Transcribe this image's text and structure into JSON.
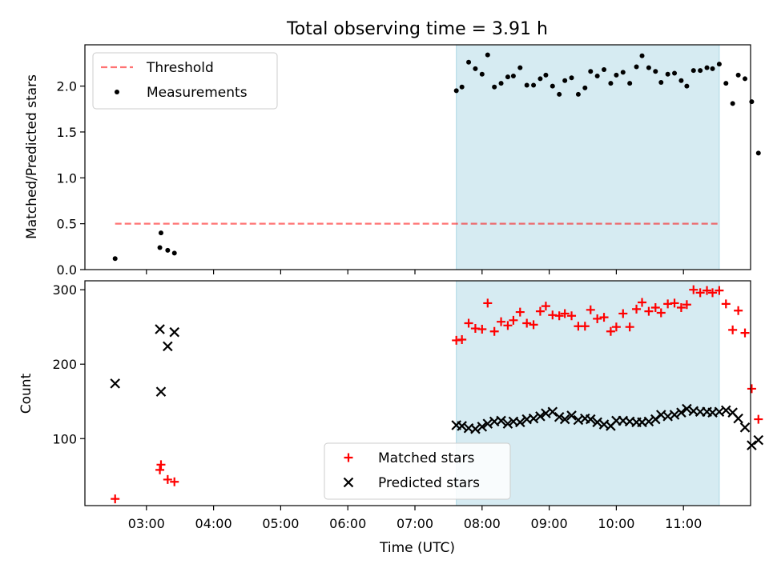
{
  "title": "Total observing time = 3.91 h",
  "colors": {
    "shade": "#add8e6",
    "threshold": "#ff0000",
    "matched": "#ff0000",
    "predicted": "#000000",
    "measurement": "#000000"
  },
  "chart_data": [
    {
      "type": "scatter",
      "ylabel": "Matched/Predicted stars",
      "ylim": [
        0,
        2.45
      ],
      "yticks": [
        "0.0",
        "0.5",
        "1.0",
        "1.5",
        "2.0"
      ],
      "xlim": [
        "02:05",
        "12:00"
      ],
      "shaded_span": [
        "07:37",
        "11:32"
      ],
      "threshold": {
        "name": "Threshold",
        "y": 0.5,
        "x_range": [
          "02:32",
          "11:32"
        ],
        "style": "dashed"
      },
      "legend": {
        "position": "top-left",
        "entries": [
          "Threshold",
          "Measurements"
        ]
      },
      "series": [
        {
          "name": "Measurements",
          "marker": "dot",
          "points": [
            [
              "02:32",
              0.12
            ],
            [
              "03:12",
              0.24
            ],
            [
              "03:13",
              0.4
            ],
            [
              "03:19",
              0.21
            ],
            [
              "03:25",
              0.18
            ],
            [
              "07:37",
              1.95
            ],
            [
              "07:42",
              1.99
            ],
            [
              "07:48",
              2.26
            ],
            [
              "07:54",
              2.19
            ],
            [
              "08:00",
              2.13
            ],
            [
              "08:05",
              2.34
            ],
            [
              "08:11",
              1.99
            ],
            [
              "08:17",
              2.03
            ],
            [
              "08:23",
              2.1
            ],
            [
              "08:28",
              2.11
            ],
            [
              "08:34",
              2.2
            ],
            [
              "08:40",
              2.01
            ],
            [
              "08:46",
              2.01
            ],
            [
              "08:52",
              2.08
            ],
            [
              "08:57",
              2.12
            ],
            [
              "09:03",
              2.0
            ],
            [
              "09:09",
              1.91
            ],
            [
              "09:14",
              2.06
            ],
            [
              "09:20",
              2.09
            ],
            [
              "09:26",
              1.91
            ],
            [
              "09:32",
              1.98
            ],
            [
              "09:37",
              2.16
            ],
            [
              "09:43",
              2.11
            ],
            [
              "09:49",
              2.18
            ],
            [
              "09:55",
              2.03
            ],
            [
              "10:00",
              2.12
            ],
            [
              "10:06",
              2.15
            ],
            [
              "10:12",
              2.03
            ],
            [
              "10:18",
              2.21
            ],
            [
              "10:23",
              2.33
            ],
            [
              "10:29",
              2.2
            ],
            [
              "10:35",
              2.16
            ],
            [
              "10:40",
              2.04
            ],
            [
              "10:46",
              2.13
            ],
            [
              "10:52",
              2.14
            ],
            [
              "10:58",
              2.06
            ],
            [
              "11:03",
              2.0
            ],
            [
              "11:09",
              2.17
            ],
            [
              "11:15",
              2.17
            ],
            [
              "11:21",
              2.2
            ],
            [
              "11:26",
              2.19
            ],
            [
              "11:32",
              2.24
            ],
            [
              "11:38",
              2.03
            ],
            [
              "11:44",
              1.81
            ],
            [
              "11:49",
              2.12
            ],
            [
              "11:55",
              2.08
            ],
            [
              "12:01",
              1.83
            ],
            [
              "12:07",
              1.27
            ]
          ]
        }
      ]
    },
    {
      "type": "scatter",
      "xlabel": "Time (UTC)",
      "ylabel": "Count",
      "ylim": [
        10,
        312
      ],
      "yticks": [
        "100",
        "200",
        "300"
      ],
      "xticks": [
        "03:00",
        "04:00",
        "05:00",
        "06:00",
        "07:00",
        "08:00",
        "09:00",
        "10:00",
        "11:00"
      ],
      "xlim": [
        "02:05",
        "12:00"
      ],
      "shaded_span": [
        "07:37",
        "11:32"
      ],
      "legend": {
        "position": "bottom-center",
        "entries": [
          "Matched stars",
          "Predicted stars"
        ]
      },
      "series": [
        {
          "name": "Matched stars",
          "marker": "plus",
          "points": [
            [
              "02:32",
              19
            ],
            [
              "03:12",
              58
            ],
            [
              "03:13",
              65
            ],
            [
              "03:19",
              45
            ],
            [
              "03:25",
              42
            ],
            [
              "07:37",
              232
            ],
            [
              "07:42",
              233
            ],
            [
              "07:48",
              255
            ],
            [
              "07:54",
              248
            ],
            [
              "08:00",
              247
            ],
            [
              "08:05",
              282
            ],
            [
              "08:11",
              244
            ],
            [
              "08:17",
              257
            ],
            [
              "08:23",
              252
            ],
            [
              "08:28",
              259
            ],
            [
              "08:34",
              270
            ],
            [
              "08:40",
              255
            ],
            [
              "08:46",
              253
            ],
            [
              "08:52",
              271
            ],
            [
              "08:57",
              278
            ],
            [
              "09:03",
              266
            ],
            [
              "09:09",
              265
            ],
            [
              "09:14",
              268
            ],
            [
              "09:20",
              265
            ],
            [
              "09:26",
              251
            ],
            [
              "09:32",
              251
            ],
            [
              "09:37",
              273
            ],
            [
              "09:43",
              261
            ],
            [
              "09:49",
              263
            ],
            [
              "09:55",
              244
            ],
            [
              "10:00",
              250
            ],
            [
              "10:06",
              268
            ],
            [
              "10:12",
              250
            ],
            [
              "10:18",
              274
            ],
            [
              "10:23",
              283
            ],
            [
              "10:29",
              271
            ],
            [
              "10:35",
              276
            ],
            [
              "10:40",
              269
            ],
            [
              "10:46",
              281
            ],
            [
              "10:52",
              282
            ],
            [
              "10:58",
              276
            ],
            [
              "11:03",
              280
            ],
            [
              "11:09",
              300
            ],
            [
              "11:15",
              296
            ],
            [
              "11:21",
              299
            ],
            [
              "11:26",
              296
            ],
            [
              "11:32",
              299
            ],
            [
              "11:38",
              281
            ],
            [
              "11:44",
              246
            ],
            [
              "11:49",
              272
            ],
            [
              "11:55",
              242
            ],
            [
              "12:01",
              167
            ],
            [
              "12:07",
              126
            ]
          ]
        },
        {
          "name": "Predicted stars",
          "marker": "x",
          "points": [
            [
              "02:32",
              174
            ],
            [
              "03:12",
              247
            ],
            [
              "03:13",
              163
            ],
            [
              "03:19",
              224
            ],
            [
              "03:25",
              243
            ],
            [
              "07:37",
              118
            ],
            [
              "07:42",
              117
            ],
            [
              "07:48",
              114
            ],
            [
              "07:54",
              113
            ],
            [
              "08:00",
              116
            ],
            [
              "08:05",
              120
            ],
            [
              "08:11",
              123
            ],
            [
              "08:17",
              124
            ],
            [
              "08:23",
              120
            ],
            [
              "08:28",
              123
            ],
            [
              "08:34",
              122
            ],
            [
              "08:40",
              126
            ],
            [
              "08:46",
              127
            ],
            [
              "08:52",
              130
            ],
            [
              "08:57",
              134
            ],
            [
              "09:03",
              136
            ],
            [
              "09:09",
              129
            ],
            [
              "09:14",
              126
            ],
            [
              "09:20",
              131
            ],
            [
              "09:26",
              125
            ],
            [
              "09:32",
              127
            ],
            [
              "09:37",
              126
            ],
            [
              "09:43",
              122
            ],
            [
              "09:49",
              119
            ],
            [
              "09:55",
              117
            ],
            [
              "10:00",
              124
            ],
            [
              "10:06",
              124
            ],
            [
              "10:12",
              123
            ],
            [
              "10:18",
              122
            ],
            [
              "10:23",
              122
            ],
            [
              "10:29",
              123
            ],
            [
              "10:35",
              126
            ],
            [
              "10:40",
              132
            ],
            [
              "10:46",
              130
            ],
            [
              "10:52",
              132
            ],
            [
              "10:58",
              135
            ],
            [
              "11:03",
              140
            ],
            [
              "11:09",
              137
            ],
            [
              "11:15",
              136
            ],
            [
              "11:21",
              136
            ],
            [
              "11:26",
              135
            ],
            [
              "11:32",
              136
            ],
            [
              "11:38",
              138
            ],
            [
              "11:44",
              135
            ],
            [
              "11:49",
              127
            ],
            [
              "11:55",
              115
            ],
            [
              "12:01",
              91
            ],
            [
              "12:07",
              98
            ]
          ]
        }
      ]
    }
  ]
}
